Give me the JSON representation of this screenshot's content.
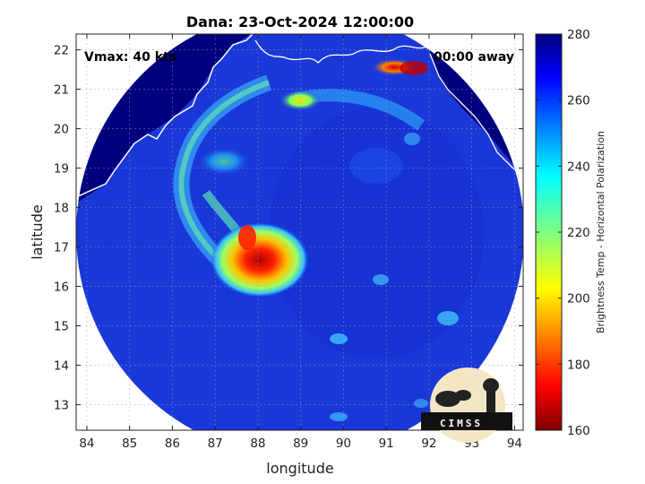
{
  "title": "Dana: 23-Oct-2024 12:00:00",
  "overlay": {
    "vmax": "Vmax: 40 kts",
    "time_away": "00:00 away"
  },
  "axes": {
    "xlabel": "longitude",
    "ylabel": "latitude",
    "xticks": [
      "84",
      "85",
      "86",
      "87",
      "88",
      "89",
      "90",
      "91",
      "92",
      "93",
      "94"
    ],
    "yticks": [
      "13",
      "14",
      "15",
      "16",
      "17",
      "18",
      "19",
      "20",
      "21",
      "22"
    ],
    "xlim": [
      83.75,
      94.2
    ],
    "ylim": [
      12.35,
      22.4
    ]
  },
  "colorbar": {
    "label": "Brightness Temp - Horizontal Polarization",
    "ticks": [
      "160",
      "180",
      "200",
      "220",
      "240",
      "260",
      "280"
    ],
    "range": [
      160,
      280
    ],
    "colormap": "jet"
  },
  "logo": {
    "text": "CIMSS"
  },
  "colors": {
    "background_ocean": "#1a37d8",
    "land": "#00007f",
    "coast": "#ffffff",
    "grid": "#aaaaaa"
  }
}
